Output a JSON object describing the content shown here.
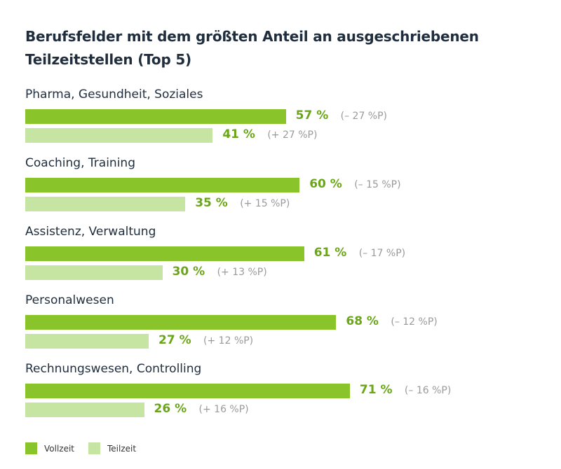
{
  "chart_data": {
    "type": "bar",
    "orientation": "horizontal",
    "title": "Berufsfelder mit dem größten Anteil an ausgeschriebenen Teilzeitstellen (Top 5)",
    "categories": [
      "Pharma, Gesundheit, Soziales",
      "Coaching, Training",
      "Assistenz, Verwaltung",
      "Personalwesen",
      "Rechnungswesen, Controlling"
    ],
    "series": [
      {
        "name": "Vollzeit",
        "color": "#88c42a",
        "values": [
          57,
          60,
          61,
          68,
          71
        ],
        "labels": [
          "57 %",
          "60 %",
          "61 %",
          "68 %",
          "71 %"
        ],
        "changes": [
          "(– 27 %P)",
          "(– 15 %P)",
          "(– 17 %P)",
          "(– 12 %P)",
          "(– 16 %P)"
        ]
      },
      {
        "name": "Teilzeit",
        "color": "#c6e5a2",
        "values": [
          41,
          35,
          30,
          27,
          26
        ],
        "labels": [
          "41 %",
          "35 %",
          "30 %",
          "27 %",
          "26 %"
        ],
        "changes": [
          "(+ 27 %P)",
          "(+ 15 %P)",
          "(+ 13 %P)",
          "(+ 12 %P)",
          "(+ 16 %P)"
        ]
      }
    ],
    "value_unit": "%",
    "xlim": [
      0,
      100
    ],
    "grid": false,
    "legend_position": "bottom-left",
    "label_color": "#6aa617",
    "change_color": "#9a9a9a"
  }
}
